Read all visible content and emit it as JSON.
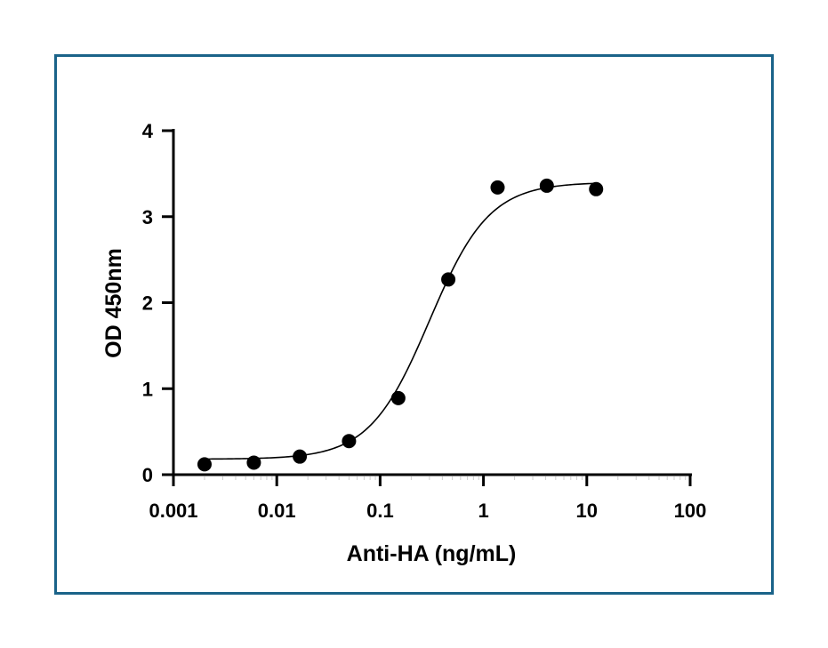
{
  "frame_color": "#1a6389",
  "chart_data": {
    "type": "scatter",
    "xlabel": "Anti-HA (ng/mL)",
    "ylabel": "OD 450nm",
    "x_scale": "log",
    "xlim": [
      0.001,
      100
    ],
    "ylim": [
      0,
      4
    ],
    "x_ticks": [
      "0.001",
      "0.01",
      "0.1",
      "1",
      "10",
      "100"
    ],
    "y_ticks": [
      "0",
      "1",
      "2",
      "3",
      "4"
    ],
    "grid": false,
    "points": [
      {
        "x": 0.002,
        "y": 0.12
      },
      {
        "x": 0.006,
        "y": 0.14
      },
      {
        "x": 0.0167,
        "y": 0.21
      },
      {
        "x": 0.05,
        "y": 0.39
      },
      {
        "x": 0.15,
        "y": 0.89
      },
      {
        "x": 0.457,
        "y": 2.27
      },
      {
        "x": 1.37,
        "y": 3.34
      },
      {
        "x": 4.1,
        "y": 3.36
      },
      {
        "x": 12.3,
        "y": 3.32
      }
    ],
    "fit": {
      "type": "4PL sigmoid",
      "bottom": 0.18,
      "top": 3.4,
      "ec50": 0.3,
      "hill": 1.5
    },
    "marker_color": "#000000",
    "line_color": "#000000"
  }
}
